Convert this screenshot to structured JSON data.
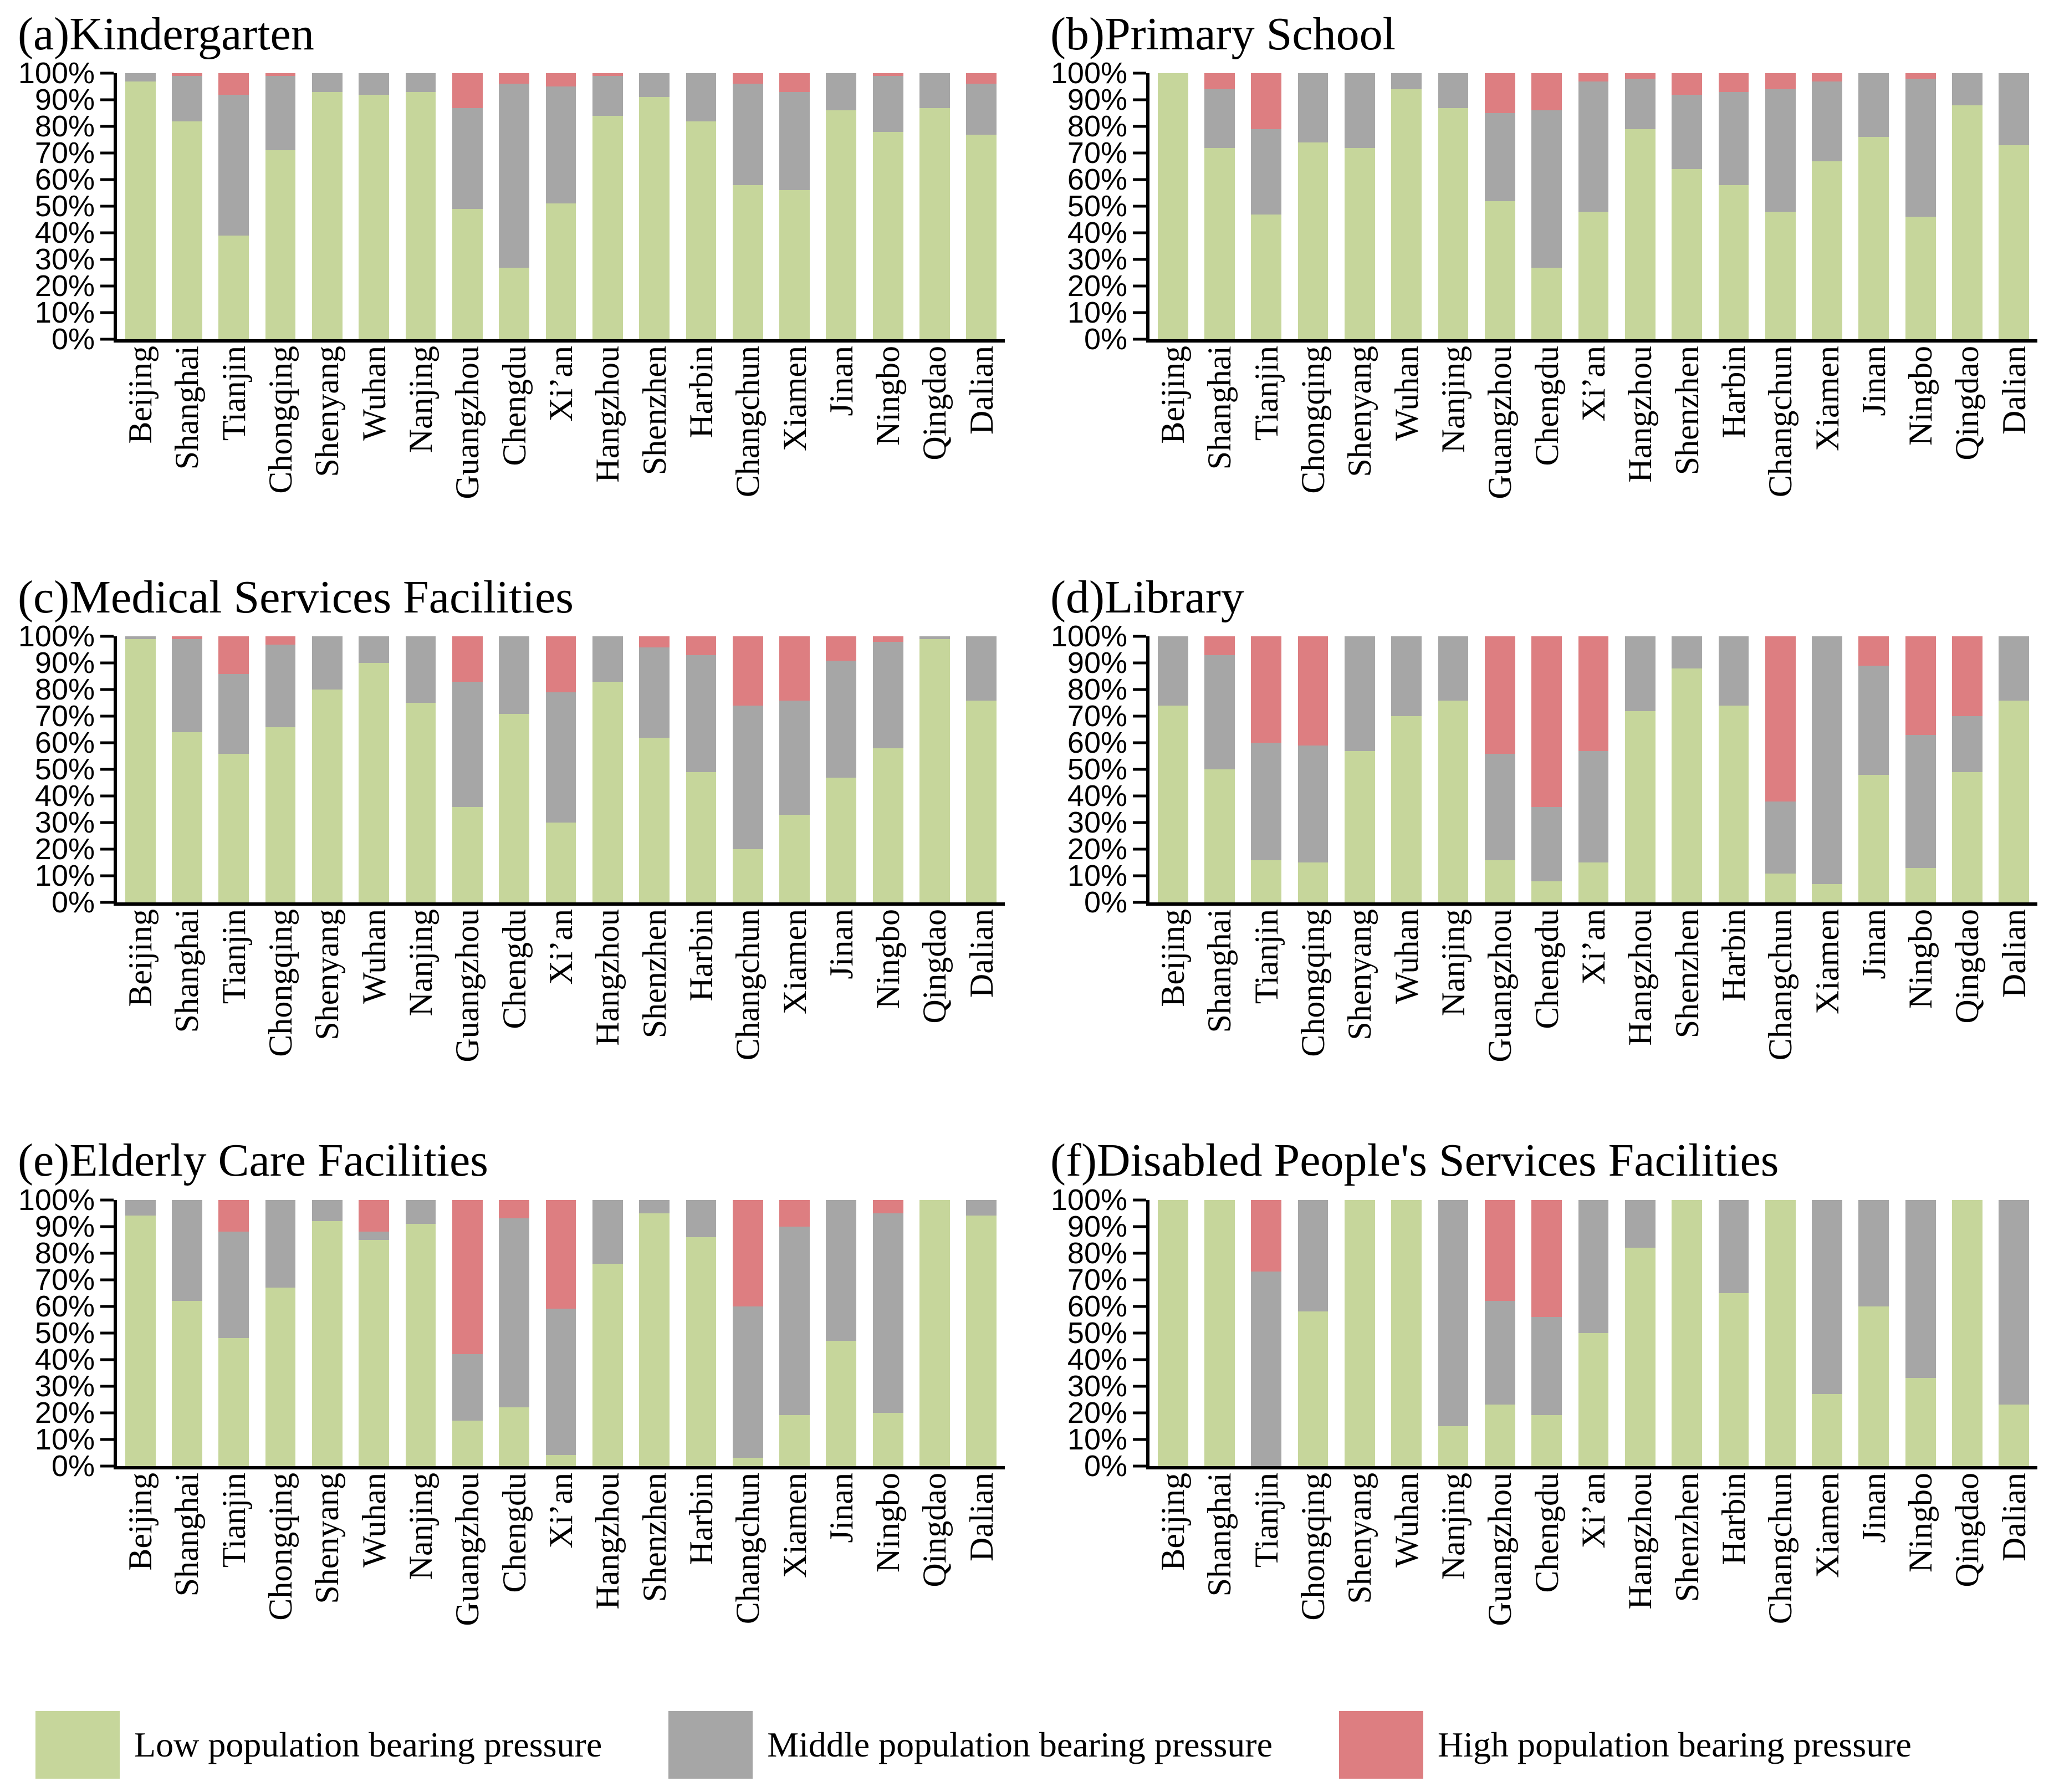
{
  "colors": {
    "low": "#c6d69b",
    "middle": "#a6a6a6",
    "high": "#dd7e81"
  },
  "y_axis_ticks": [
    "0%",
    "10%",
    "20%",
    "30%",
    "40%",
    "50%",
    "60%",
    "70%",
    "80%",
    "90%",
    "100%"
  ],
  "legend": [
    {
      "key": "low",
      "label": "Low population bearing pressure"
    },
    {
      "key": "middle",
      "label": "Middle population bearing pressure"
    },
    {
      "key": "high",
      "label": "High population bearing pressure"
    }
  ],
  "chart_data": [
    {
      "id": "a",
      "type": "bar",
      "stacked": true,
      "title": "(a)Kindergarten",
      "ylabel": "",
      "ylim": [
        0,
        100
      ],
      "grid": false,
      "categories": [
        "Beijing",
        "Shanghai",
        "Tianjin",
        "Chongqing",
        "Shenyang",
        "Wuhan",
        "Nanjing",
        "Guangzhou",
        "Chengdu",
        "Xi’an",
        "Hangzhou",
        "Shenzhen",
        "Harbin",
        "Changchun",
        "Xiamen",
        "Jinan",
        "Ningbo",
        "Qingdao",
        "Dalian"
      ],
      "series": [
        {
          "name": "Low population bearing pressure",
          "key": "low",
          "values": [
            97,
            82,
            39,
            71,
            93,
            92,
            93,
            49,
            27,
            51,
            84,
            91,
            82,
            58,
            56,
            86,
            78,
            87,
            77
          ]
        },
        {
          "name": "Middle population bearing pressure",
          "key": "middle",
          "values": [
            3,
            17,
            53,
            28,
            7,
            8,
            7,
            38,
            69,
            44,
            15,
            9,
            18,
            38,
            37,
            14,
            21,
            13,
            19
          ]
        },
        {
          "name": "High population bearing pressure",
          "key": "high",
          "values": [
            0,
            1,
            8,
            1,
            0,
            0,
            0,
            13,
            4,
            5,
            1,
            0,
            0,
            4,
            7,
            0,
            1,
            0,
            4
          ]
        }
      ]
    },
    {
      "id": "b",
      "type": "bar",
      "stacked": true,
      "title": "(b)Primary School",
      "ylabel": "",
      "ylim": [
        0,
        100
      ],
      "grid": false,
      "categories": [
        "Beijing",
        "Shanghai",
        "Tianjin",
        "Chongqing",
        "Shenyang",
        "Wuhan",
        "Nanjing",
        "Guangzhou",
        "Chengdu",
        "Xi’an",
        "Hangzhou",
        "Shenzhen",
        "Harbin",
        "Changchun",
        "Xiamen",
        "Jinan",
        "Ningbo",
        "Qingdao",
        "Dalian"
      ],
      "series": [
        {
          "name": "Low population bearing pressure",
          "key": "low",
          "values": [
            100,
            72,
            47,
            74,
            72,
            94,
            87,
            52,
            27,
            48,
            79,
            64,
            58,
            48,
            67,
            76,
            46,
            88,
            73
          ]
        },
        {
          "name": "Middle population bearing pressure",
          "key": "middle",
          "values": [
            0,
            22,
            32,
            26,
            28,
            6,
            13,
            33,
            59,
            49,
            19,
            28,
            35,
            46,
            30,
            24,
            52,
            12,
            27
          ]
        },
        {
          "name": "High population bearing pressure",
          "key": "high",
          "values": [
            0,
            6,
            21,
            0,
            0,
            0,
            0,
            15,
            14,
            3,
            2,
            8,
            7,
            6,
            3,
            0,
            2,
            0,
            0
          ]
        }
      ]
    },
    {
      "id": "c",
      "type": "bar",
      "stacked": true,
      "title": "(c)Medical Services Facilities",
      "ylabel": "",
      "ylim": [
        0,
        100
      ],
      "grid": false,
      "categories": [
        "Beijing",
        "Shanghai",
        "Tianjin",
        "Chongqing",
        "Shenyang",
        "Wuhan",
        "Nanjing",
        "Guangzhou",
        "Chengdu",
        "Xi’an",
        "Hangzhou",
        "Shenzhen",
        "Harbin",
        "Changchun",
        "Xiamen",
        "Jinan",
        "Ningbo",
        "Qingdao",
        "Dalian"
      ],
      "series": [
        {
          "name": "Low population bearing pressure",
          "key": "low",
          "values": [
            99,
            64,
            56,
            66,
            80,
            90,
            75,
            36,
            71,
            30,
            83,
            62,
            49,
            20,
            33,
            47,
            58,
            99,
            76
          ]
        },
        {
          "name": "Middle population bearing pressure",
          "key": "middle",
          "values": [
            1,
            35,
            30,
            31,
            20,
            10,
            25,
            47,
            29,
            49,
            17,
            34,
            44,
            54,
            43,
            44,
            40,
            1,
            24
          ]
        },
        {
          "name": "High population bearing pressure",
          "key": "high",
          "values": [
            0,
            1,
            14,
            3,
            0,
            0,
            0,
            17,
            0,
            21,
            0,
            4,
            7,
            26,
            24,
            9,
            2,
            0,
            0
          ]
        }
      ]
    },
    {
      "id": "d",
      "type": "bar",
      "stacked": true,
      "title": "(d)Library",
      "ylabel": "",
      "ylim": [
        0,
        100
      ],
      "grid": false,
      "categories": [
        "Beijing",
        "Shanghai",
        "Tianjin",
        "Chongqing",
        "Shenyang",
        "Wuhan",
        "Nanjing",
        "Guangzhou",
        "Chengdu",
        "Xi’an",
        "Hangzhou",
        "Shenzhen",
        "Harbin",
        "Changchun",
        "Xiamen",
        "Jinan",
        "Ningbo",
        "Qingdao",
        "Dalian"
      ],
      "series": [
        {
          "name": "Low population bearing pressure",
          "key": "low",
          "values": [
            74,
            50,
            16,
            15,
            57,
            70,
            76,
            16,
            8,
            15,
            72,
            88,
            74,
            11,
            7,
            48,
            13,
            49,
            76
          ]
        },
        {
          "name": "Middle population bearing pressure",
          "key": "middle",
          "values": [
            26,
            43,
            44,
            44,
            43,
            30,
            24,
            40,
            28,
            42,
            28,
            12,
            26,
            27,
            93,
            41,
            50,
            21,
            24
          ]
        },
        {
          "name": "High population bearing pressure",
          "key": "high",
          "values": [
            0,
            7,
            40,
            41,
            0,
            0,
            0,
            44,
            64,
            43,
            0,
            0,
            0,
            62,
            0,
            11,
            37,
            30,
            0
          ]
        }
      ]
    },
    {
      "id": "e",
      "type": "bar",
      "stacked": true,
      "title": "(e)Elderly Care Facilities",
      "ylabel": "",
      "ylim": [
        0,
        100
      ],
      "grid": false,
      "categories": [
        "Beijing",
        "Shanghai",
        "Tianjin",
        "Chongqing",
        "Shenyang",
        "Wuhan",
        "Nanjing",
        "Guangzhou",
        "Chengdu",
        "Xi’an",
        "Hangzhou",
        "Shenzhen",
        "Harbin",
        "Changchun",
        "Xiamen",
        "Jinan",
        "Ningbo",
        "Qingdao",
        "Dalian"
      ],
      "series": [
        {
          "name": "Low population bearing pressure",
          "key": "low",
          "values": [
            94,
            62,
            48,
            67,
            92,
            85,
            91,
            17,
            22,
            4,
            76,
            95,
            86,
            3,
            19,
            47,
            20,
            100,
            94
          ]
        },
        {
          "name": "Middle population bearing pressure",
          "key": "middle",
          "values": [
            6,
            38,
            40,
            33,
            8,
            3,
            9,
            25,
            71,
            55,
            24,
            5,
            14,
            57,
            71,
            53,
            75,
            0,
            6
          ]
        },
        {
          "name": "High population bearing pressure",
          "key": "high",
          "values": [
            0,
            0,
            12,
            0,
            0,
            12,
            0,
            58,
            7,
            41,
            0,
            0,
            0,
            40,
            10,
            0,
            5,
            0,
            0
          ]
        }
      ]
    },
    {
      "id": "f",
      "type": "bar",
      "stacked": true,
      "title": "(f)Disabled People's Services Facilities",
      "ylabel": "",
      "ylim": [
        0,
        100
      ],
      "grid": false,
      "categories": [
        "Beijing",
        "Shanghai",
        "Tianjin",
        "Chongqing",
        "Shenyang",
        "Wuhan",
        "Nanjing",
        "Guangzhou",
        "Chengdu",
        "Xi’an",
        "Hangzhou",
        "Shenzhen",
        "Harbin",
        "Changchun",
        "Xiamen",
        "Jinan",
        "Ningbo",
        "Qingdao",
        "Dalian"
      ],
      "series": [
        {
          "name": "Low population bearing pressure",
          "key": "low",
          "values": [
            100,
            100,
            0,
            58,
            100,
            100,
            15,
            23,
            19,
            50,
            82,
            100,
            65,
            100,
            27,
            60,
            33,
            100,
            23
          ]
        },
        {
          "name": "Middle population bearing pressure",
          "key": "middle",
          "values": [
            0,
            0,
            73,
            42,
            0,
            0,
            85,
            39,
            37,
            50,
            18,
            0,
            35,
            0,
            73,
            40,
            67,
            0,
            77
          ]
        },
        {
          "name": "High population bearing pressure",
          "key": "high",
          "values": [
            0,
            0,
            27,
            0,
            0,
            0,
            0,
            38,
            44,
            0,
            0,
            0,
            0,
            0,
            0,
            0,
            0,
            0,
            0
          ]
        }
      ]
    }
  ]
}
